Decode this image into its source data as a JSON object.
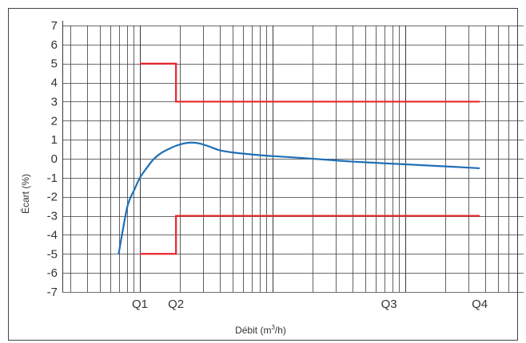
{
  "chart_data": {
    "type": "line",
    "title": "",
    "xlabel_prefix": "Débit (m",
    "xlabel_sup": "3",
    "xlabel_suffix": "/h)",
    "ylabel": "Écart (%)",
    "xscale": "log",
    "ylim": [
      -7,
      7
    ],
    "yticks": [
      "7",
      "6",
      "5",
      "4",
      "3",
      "2",
      "1",
      "0",
      "-1",
      "-2",
      "-3",
      "-4",
      "-5",
      "-6",
      "-7"
    ],
    "grid": true,
    "legend": "none",
    "x_categories": [
      {
        "label": "Q1",
        "decade_pos": 0.0
      },
      {
        "label": "Q2",
        "decade_pos": 0.272
      },
      {
        "label": "Q3",
        "decade_pos": 1.877
      },
      {
        "label": "Q4",
        "decade_pos": 2.561
      }
    ],
    "series": [
      {
        "color": "#e8262b",
        "style": "step",
        "points": [
          [
            0.0,
            5
          ],
          [
            0.272,
            5
          ],
          [
            0.272,
            3
          ],
          [
            2.561,
            3
          ]
        ]
      },
      {
        "color": "#e8262b",
        "style": "step",
        "points": [
          [
            0.0,
            -5
          ],
          [
            0.272,
            -5
          ],
          [
            0.272,
            -3
          ],
          [
            2.561,
            -3
          ]
        ]
      },
      {
        "color": "#1f6fb5",
        "style": "curve",
        "points": [
          [
            -0.16,
            -5.0
          ],
          [
            -0.13,
            -3.8
          ],
          [
            -0.09,
            -2.4
          ],
          [
            -0.04,
            -1.6
          ],
          [
            0.0,
            -1.0
          ],
          [
            0.05,
            -0.5
          ],
          [
            0.1,
            -0.05
          ],
          [
            0.16,
            0.3
          ],
          [
            0.22,
            0.52
          ],
          [
            0.272,
            0.68
          ],
          [
            0.33,
            0.8
          ],
          [
            0.39,
            0.85
          ],
          [
            0.45,
            0.8
          ],
          [
            0.52,
            0.65
          ],
          [
            0.6,
            0.45
          ],
          [
            0.7,
            0.33
          ],
          [
            0.85,
            0.22
          ],
          [
            1.0,
            0.14
          ],
          [
            1.2,
            0.05
          ],
          [
            1.4,
            -0.05
          ],
          [
            1.6,
            -0.15
          ],
          [
            1.877,
            -0.25
          ],
          [
            2.1,
            -0.33
          ],
          [
            2.35,
            -0.42
          ],
          [
            2.561,
            -0.5
          ]
        ]
      }
    ]
  }
}
